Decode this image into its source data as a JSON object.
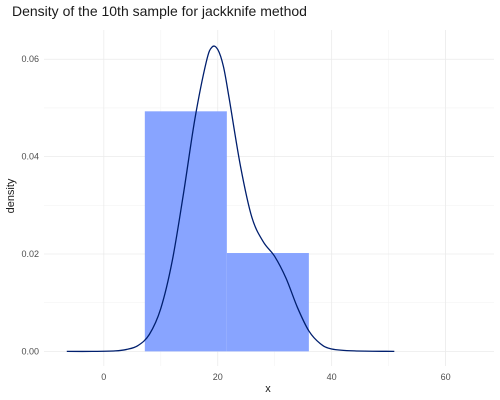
{
  "chart_data": {
    "type": "histogram-density",
    "title": "Density of the 10th sample for jackknife method",
    "xlabel": "x",
    "ylabel": "density",
    "xlim": [
      -10.5,
      68.5
    ],
    "ylim": [
      -0.003,
      0.066
    ],
    "x_ticks": [
      0,
      20,
      40,
      60
    ],
    "y_ticks": [
      0.0,
      0.02,
      0.04,
      0.06
    ],
    "x_tick_labels": [
      "0",
      "20",
      "40",
      "60"
    ],
    "y_tick_labels": [
      "0.00",
      "0.02",
      "0.04",
      "0.06"
    ],
    "grid": true,
    "histogram": {
      "color": "#88a4ff",
      "bins": [
        {
          "x0": 7.2,
          "x1": 21.6,
          "density": 0.0493
        },
        {
          "x0": 21.6,
          "x1": 36.0,
          "density": 0.0202
        }
      ]
    },
    "density_curve": {
      "color": "#001f6e",
      "points": [
        [
          -6.5,
          0.0
        ],
        [
          -2,
          0.0
        ],
        [
          2,
          0.0001
        ],
        [
          4,
          0.0004
        ],
        [
          6,
          0.0012
        ],
        [
          8,
          0.0035
        ],
        [
          10,
          0.0088
        ],
        [
          12,
          0.0185
        ],
        [
          14,
          0.0325
        ],
        [
          16,
          0.0478
        ],
        [
          18,
          0.0595
        ],
        [
          19,
          0.0625
        ],
        [
          20,
          0.062
        ],
        [
          21,
          0.0585
        ],
        [
          22,
          0.052
        ],
        [
          24,
          0.038
        ],
        [
          26,
          0.0275
        ],
        [
          28,
          0.0225
        ],
        [
          30,
          0.0195
        ],
        [
          32,
          0.015
        ],
        [
          34,
          0.009
        ],
        [
          36,
          0.0042
        ],
        [
          38,
          0.0016
        ],
        [
          40,
          0.0005
        ],
        [
          44,
          0.0001
        ],
        [
          51,
          0.0
        ]
      ]
    }
  }
}
